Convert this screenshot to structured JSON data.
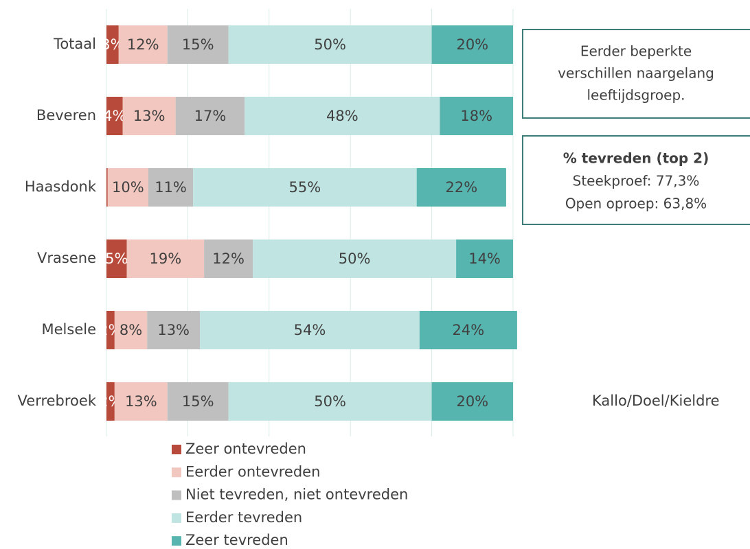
{
  "chart_data": {
    "type": "stacked-bar-horizontal",
    "categories": [
      "Totaal",
      "Beveren",
      "Haasdonk",
      "Vrasene",
      "Melsele",
      "Verrebroek"
    ],
    "series": [
      {
        "name": "Zeer ontevreden",
        "color": "#b84a3b",
        "values": [
          3,
          4,
          0.3,
          5,
          2,
          2
        ],
        "value_labels": [
          "3%",
          "4%",
          null,
          "5%",
          "2%",
          "2%"
        ]
      },
      {
        "name": "Eerder ontevreden",
        "color": "#f1c7bf",
        "values": [
          12,
          13,
          10,
          19,
          8,
          13
        ],
        "value_labels": [
          "12%",
          "13%",
          "10%",
          "19%",
          "8%",
          "13%"
        ]
      },
      {
        "name": "Niet tevreden, niet ontevreden",
        "color": "#bfbfbf",
        "values": [
          15,
          17,
          11,
          12,
          13,
          15
        ],
        "value_labels": [
          "15%",
          "17%",
          "11%",
          "12%",
          "13%",
          "15%"
        ]
      },
      {
        "name": "Eerder tevreden",
        "color": "#c0e4e1",
        "values": [
          50,
          48,
          55,
          50,
          54,
          50
        ],
        "value_labels": [
          "50%",
          "48%",
          "55%",
          "50%",
          "54%",
          "50%"
        ]
      },
      {
        "name": "Zeer tevreden",
        "color": "#57b5af",
        "values": [
          20,
          18,
          22,
          14,
          24,
          20
        ],
        "value_labels": [
          "20%",
          "18%",
          "22%",
          "14%",
          "24%",
          "20%"
        ]
      }
    ],
    "xlim": [
      0,
      100
    ],
    "xticks": [
      0,
      20,
      40,
      60,
      80,
      100
    ],
    "grid": true,
    "annotations": {
      "box1": [
        "Eerder beperkte",
        "verschillen naargelang",
        "leeftijdsgroep."
      ],
      "box2": {
        "title": "% tevreden (top 2)",
        "lines": [
          "Steekproef: 77,3%",
          "Open oproep: 63,8%"
        ]
      },
      "cropped_label": "Kallo/Doel/Kieldre"
    }
  }
}
